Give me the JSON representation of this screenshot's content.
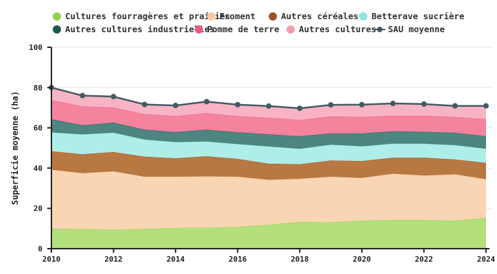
{
  "chart_data": {
    "type": "area",
    "stacked": true,
    "title": "",
    "xlabel": "",
    "ylabel": "Superficie moyenne (ha)",
    "ylim": [
      0,
      100
    ],
    "yticks": [
      0,
      20,
      40,
      60,
      80,
      100
    ],
    "xticks": [
      2010,
      2012,
      2014,
      2016,
      2018,
      2020,
      2022,
      2024
    ],
    "grid": true,
    "legend_position": "top",
    "x": [
      2010,
      2011,
      2012,
      2013,
      2014,
      2015,
      2016,
      2017,
      2018,
      2019,
      2020,
      2021,
      2022,
      2023,
      2024
    ],
    "series": [
      {
        "name": "Cultures fourragères et prairies",
        "color": "#b3e07a",
        "line": "#8fd14f",
        "values": [
          9.9,
          9.8,
          9.5,
          9.8,
          10.3,
          10.4,
          10.8,
          11.9,
          13.3,
          13.1,
          13.9,
          14.2,
          14.2,
          13.9,
          15.3
        ]
      },
      {
        "name": "Froment",
        "color": "#f9d5b4",
        "line": "#f5c49a",
        "values": [
          29.3,
          27.7,
          28.9,
          25.9,
          25.4,
          25.5,
          24.9,
          22.3,
          21.4,
          22.6,
          21.2,
          23.0,
          22.1,
          23.0,
          19.2
        ]
      },
      {
        "name": "Autres céréales",
        "color": "#b87842",
        "line": "#a0522d",
        "values": [
          9.2,
          9.4,
          9.6,
          10.0,
          9.2,
          10.0,
          8.9,
          8.0,
          7.2,
          8.1,
          8.4,
          8.0,
          8.9,
          7.4,
          8.1
        ]
      },
      {
        "name": "Betterave sucrière",
        "color": "#aeeee8",
        "line": "#8ee5de",
        "values": [
          9.3,
          9.8,
          9.6,
          8.5,
          8.0,
          7.3,
          7.3,
          8.5,
          7.7,
          7.8,
          7.3,
          6.9,
          6.9,
          7.1,
          7.0
        ]
      },
      {
        "name": "Autres cultures industrielles",
        "color": "#4d8580",
        "line": "#1e5954",
        "values": [
          6.6,
          4.6,
          5.0,
          4.9,
          5.0,
          5.9,
          5.9,
          6.1,
          6.2,
          5.6,
          6.4,
          6.2,
          5.9,
          6.2,
          6.2
        ]
      },
      {
        "name": "Pomme de terre",
        "color": "#f5839e",
        "line": "#ec5a80",
        "values": [
          9.5,
          9.3,
          7.5,
          7.7,
          7.9,
          8.2,
          8.0,
          8.2,
          8.1,
          8.5,
          8.2,
          7.7,
          8.0,
          7.8,
          8.5
        ]
      },
      {
        "name": "Autres cultures",
        "color": "#f8b4c4",
        "line": "#f49ab0",
        "values": [
          6.2,
          5.4,
          5.4,
          4.8,
          5.3,
          5.7,
          5.7,
          5.8,
          5.8,
          5.7,
          6.1,
          6.1,
          5.8,
          5.5,
          6.6
        ]
      }
    ],
    "line_series": {
      "name": "SAU moyenne",
      "color": "#455a64",
      "values": [
        80.0,
        76.0,
        75.5,
        71.6,
        71.1,
        73.0,
        71.5,
        70.8,
        69.7,
        71.4,
        71.5,
        72.1,
        71.8,
        70.9,
        70.9
      ]
    }
  },
  "legend": {
    "items": [
      {
        "label": "Cultures fourragères et prairies",
        "color": "#8fd14f",
        "kind": "dot"
      },
      {
        "label": "Froment",
        "color": "#f9c99e",
        "kind": "dot"
      },
      {
        "label": "Autres céréales",
        "color": "#a0522d",
        "kind": "dot"
      },
      {
        "label": "Betterave sucrière",
        "color": "#8ee5de",
        "kind": "dot"
      },
      {
        "label": "Autres cultures industrielles",
        "color": "#1e5954",
        "kind": "dot"
      },
      {
        "label": "Pomme de terre",
        "color": "#ec5a80",
        "kind": "dot"
      },
      {
        "label": "Autres cultures",
        "color": "#f49ab0",
        "kind": "dot"
      },
      {
        "label": "SAU moyenne",
        "color": "#455a64",
        "kind": "line"
      }
    ]
  }
}
